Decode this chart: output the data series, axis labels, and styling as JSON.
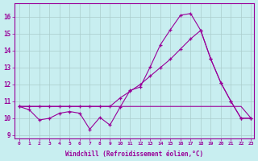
{
  "xlabel": "Windchill (Refroidissement éolien,°C)",
  "bg_color": "#c8eef0",
  "grid_color": "#aacccc",
  "line_color": "#990099",
  "ylim_min": 8.8,
  "ylim_max": 16.8,
  "xlim_min": -0.5,
  "xlim_max": 23.3,
  "yticks": [
    9,
    10,
    11,
    12,
    13,
    14,
    15,
    16
  ],
  "xticks": [
    0,
    1,
    2,
    3,
    4,
    5,
    6,
    7,
    8,
    9,
    10,
    11,
    12,
    13,
    14,
    15,
    16,
    17,
    18,
    19,
    20,
    21,
    22,
    23
  ],
  "line1_x": [
    0,
    1,
    2,
    3,
    4,
    5,
    6,
    7,
    8,
    9,
    10,
    11,
    12,
    13,
    14,
    15,
    16,
    17,
    18,
    19,
    20,
    21,
    22,
    23
  ],
  "line1_y": [
    10.7,
    10.5,
    9.9,
    10.0,
    10.3,
    10.4,
    10.3,
    9.35,
    10.05,
    9.6,
    10.65,
    11.65,
    11.85,
    13.05,
    14.35,
    15.25,
    16.1,
    16.2,
    15.2,
    13.5,
    12.1,
    11.0,
    10.0,
    10.0
  ],
  "line2_x": [
    0,
    1,
    2,
    3,
    4,
    5,
    6,
    7,
    8,
    9,
    10,
    11,
    12,
    13,
    14,
    15,
    16,
    17,
    18,
    19,
    20,
    21,
    22,
    23
  ],
  "line2_y": [
    10.7,
    10.7,
    10.7,
    10.7,
    10.7,
    10.7,
    10.7,
    10.7,
    10.7,
    10.7,
    10.7,
    10.7,
    10.7,
    10.7,
    10.7,
    10.7,
    10.7,
    10.7,
    10.7,
    10.7,
    10.7,
    10.7,
    10.7,
    10.0
  ],
  "line3_x": [
    0,
    1,
    2,
    3,
    4,
    5,
    6,
    7,
    8,
    9,
    10,
    11,
    12,
    13,
    14,
    15,
    16,
    17,
    18,
    19,
    20,
    21,
    22,
    23
  ],
  "line3_y": [
    10.7,
    10.7,
    10.7,
    10.7,
    10.7,
    10.7,
    10.7,
    10.7,
    10.7,
    10.7,
    11.2,
    11.6,
    12.0,
    12.5,
    13.0,
    13.5,
    14.1,
    14.7,
    15.2,
    13.5,
    12.1,
    11.0,
    10.0,
    10.0
  ]
}
